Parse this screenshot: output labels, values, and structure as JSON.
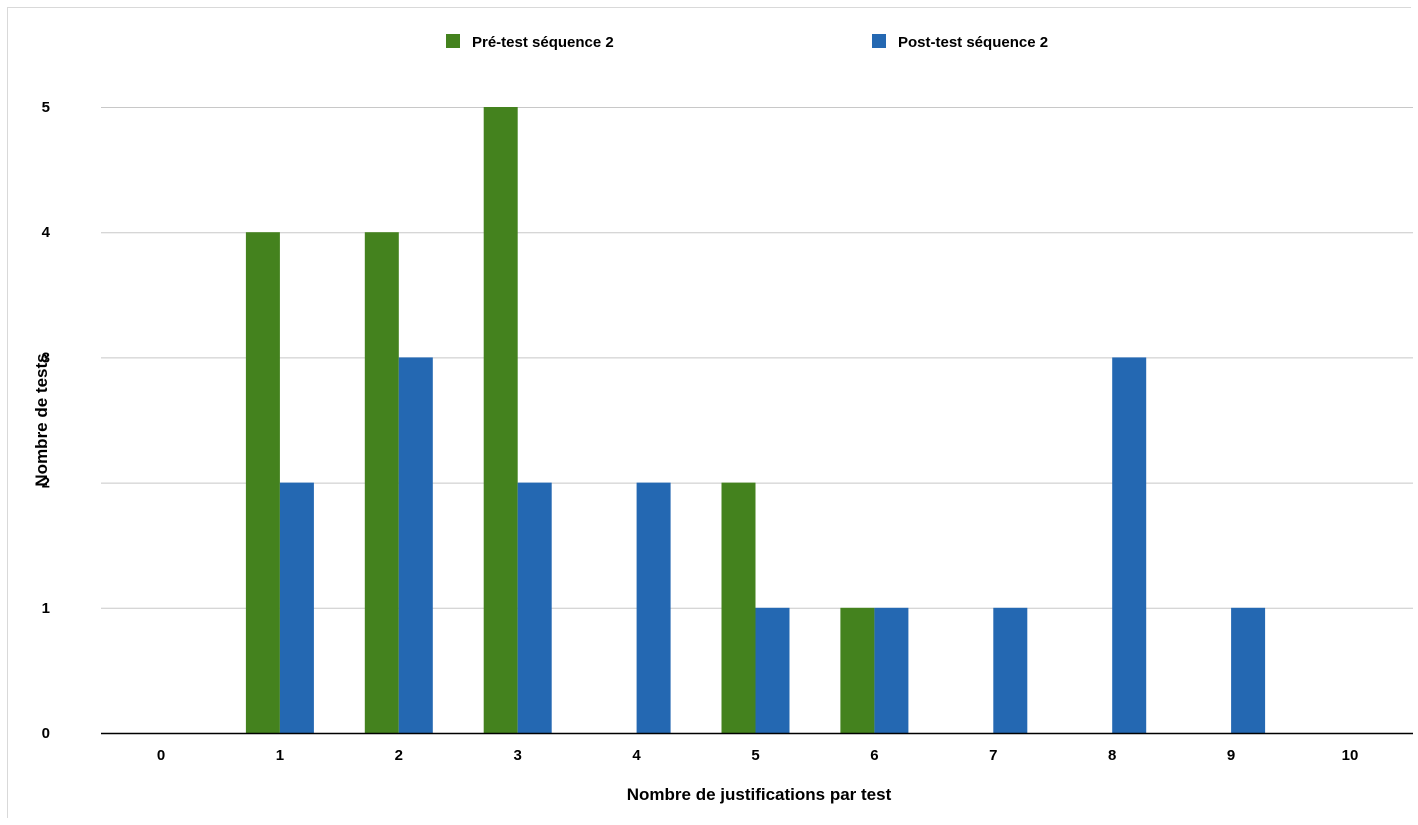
{
  "chart_data": {
    "type": "bar",
    "categories": [
      "0",
      "1",
      "2",
      "3",
      "4",
      "5",
      "6",
      "7",
      "8",
      "9",
      "10"
    ],
    "series": [
      {
        "name": "Pré-test séquence 2",
        "color": "#44821e",
        "values": [
          0,
          4,
          4,
          5,
          0,
          2,
          1,
          0,
          0,
          0,
          0
        ]
      },
      {
        "name": "Post-test séquence 2",
        "color": "#2468b2",
        "values": [
          0,
          2,
          3,
          2,
          2,
          1,
          1,
          1,
          3,
          1,
          0
        ]
      }
    ],
    "xlabel": "Nombre de justifications par test",
    "ylabel": "Nombre de tests",
    "ylim": [
      0,
      5
    ],
    "yticks": [
      "0",
      "1",
      "2",
      "3",
      "4",
      "5"
    ],
    "grid": true,
    "legend_position": "top-center",
    "gridline_color": "#c8c8c8",
    "axis_color": "#000000"
  }
}
